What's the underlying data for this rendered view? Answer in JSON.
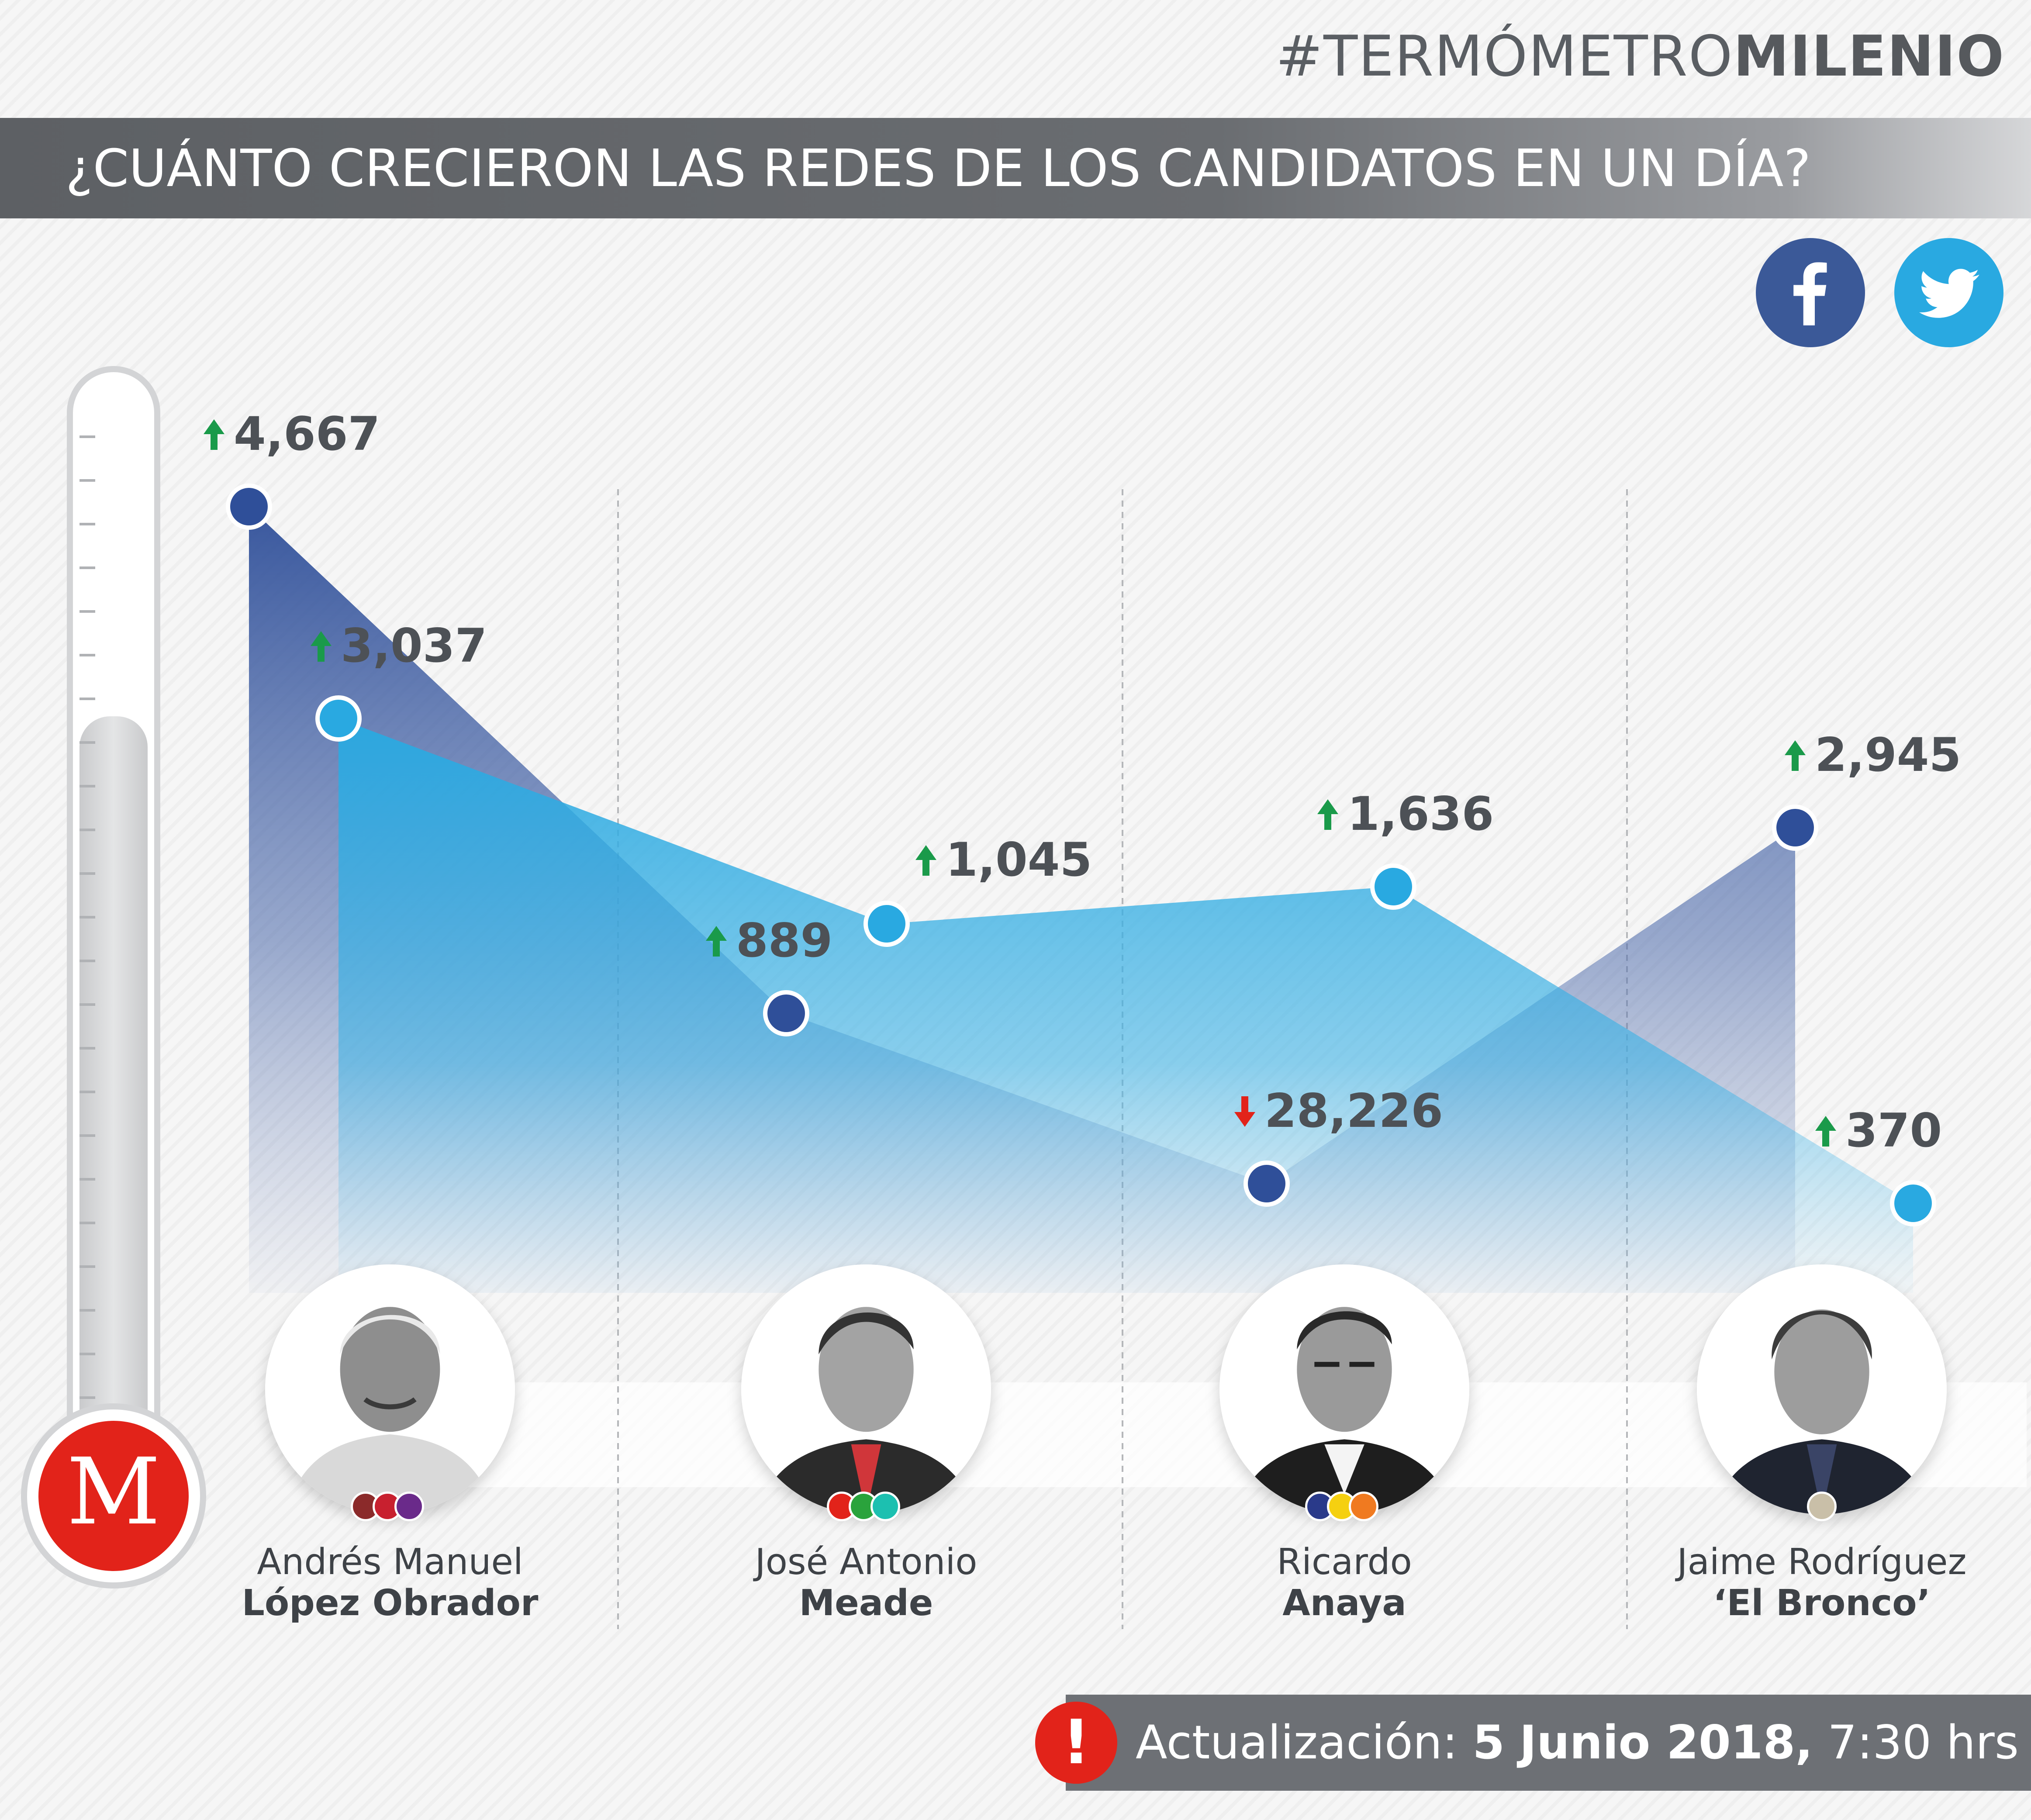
{
  "brand": {
    "prefix": "#TERMÓMETRO",
    "bold": "MILENIO"
  },
  "headline": "¿CUÁNTO CRECIERON LAS REDES DE LOS CANDIDATOS EN UN DÍA?",
  "social": {
    "facebook": {
      "icon": "facebook-icon",
      "color": "#3b5998"
    },
    "twitter": {
      "icon": "twitter-icon",
      "color": "#29a9e1"
    }
  },
  "logo": {
    "letter": "M",
    "color": "#e2231a"
  },
  "candidates": [
    {
      "first": "Andrés Manuel",
      "last": "López Obrador",
      "party_colors": [
        "#8b2a2a",
        "#c8202f",
        "#6a2a8a"
      ]
    },
    {
      "first": "José Antonio",
      "last": "Meade",
      "party_colors": [
        "#e2231a",
        "#2aa33c",
        "#1cc0b0"
      ]
    },
    {
      "first": "Ricardo",
      "last": "Anaya",
      "party_colors": [
        "#2a3a8a",
        "#f5d010",
        "#f07a20"
      ]
    },
    {
      "first": "Jaime Rodríguez",
      "last": "‘El Bronco’",
      "party_colors": [
        "#c9bfa8"
      ]
    }
  ],
  "update": {
    "label": "Actualización:",
    "day": "5",
    "date_bold": "Junio 2018,",
    "time": "7:30 hrs",
    "icon": "alert-icon"
  },
  "chart_data": {
    "type": "area",
    "categories": [
      "Andrés Manuel López Obrador",
      "José Antonio Meade",
      "Ricardo Anaya",
      "Jaime Rodríguez ‘El Bronco’"
    ],
    "series": [
      {
        "platform": "facebook",
        "color": "#2f4f99",
        "values": [
          4667,
          889,
          28226,
          2945
        ],
        "labels": [
          "4,667",
          "889",
          "28,226",
          "2,945"
        ],
        "trend": [
          "up",
          "up",
          "down",
          "up"
        ]
      },
      {
        "platform": "twitter",
        "color": "#29a9e1",
        "values": [
          3037,
          1045,
          1636,
          370
        ],
        "labels": [
          "3,037",
          "1,045",
          "1,636",
          "370"
        ],
        "trend": [
          "up",
          "up",
          "up",
          "up"
        ]
      }
    ],
    "colors": {
      "up": "#1a9a4a",
      "down": "#e2231a"
    }
  }
}
